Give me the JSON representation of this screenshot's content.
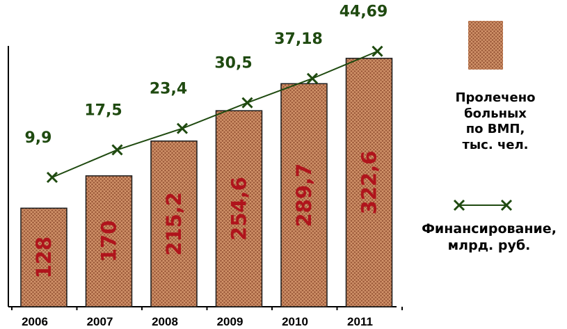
{
  "chart_data": {
    "type": "bar",
    "categories": [
      "2006",
      "2007",
      "2008",
      "2009",
      "2010",
      "2011"
    ],
    "series": [
      {
        "name": "Пролечено больных по ВМП, тыс. чел.",
        "kind": "bar",
        "values": [
          128,
          170,
          215.2,
          254.6,
          289.7,
          322.6
        ],
        "labels": [
          "128",
          "170",
          "215,2",
          "254,6",
          "289,7",
          "322,6"
        ]
      },
      {
        "name": "Финансирование, млрд. руб.",
        "kind": "line",
        "values": [
          9.9,
          17.5,
          23.4,
          30.5,
          37.18,
          44.69
        ],
        "labels": [
          "9,9",
          "17,5",
          "23,4",
          "30,5",
          "37,18",
          "44,69"
        ]
      }
    ],
    "legend": {
      "bar_lines": [
        "Пролечено",
        "больных",
        "по ВМП,",
        "тыс. чел."
      ],
      "line_lines": [
        "Финансирование,",
        "млрд. руб."
      ],
      "position": "right"
    },
    "colors": {
      "bar_fill": "#9c5a3a",
      "bar_pattern": "#d89a70",
      "bar_label": "#b0141c",
      "line": "#1f4a10",
      "axis": "#000000"
    }
  }
}
